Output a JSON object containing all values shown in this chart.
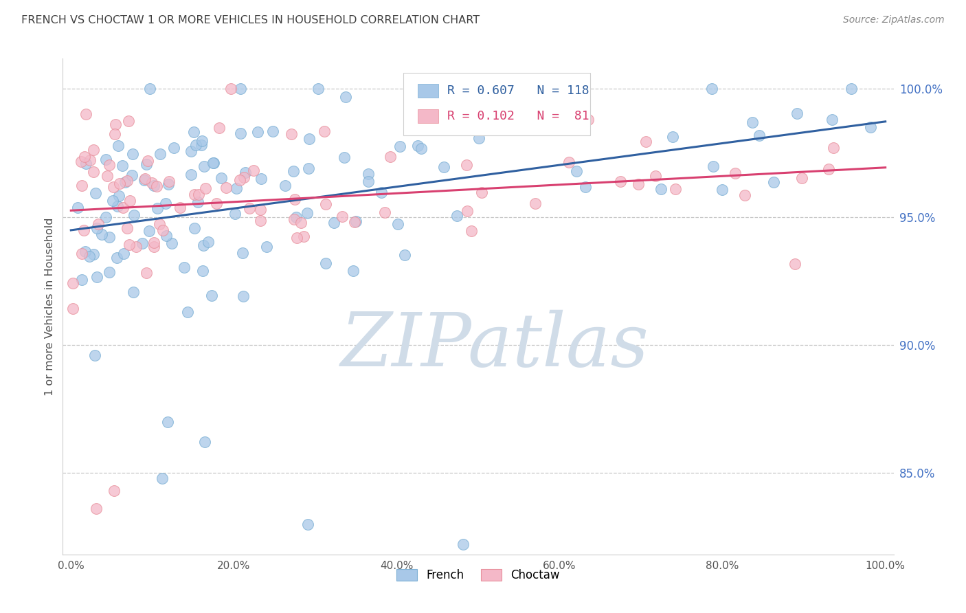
{
  "title": "FRENCH VS CHOCTAW 1 OR MORE VEHICLES IN HOUSEHOLD CORRELATION CHART",
  "source": "Source: ZipAtlas.com",
  "ylabel": "1 or more Vehicles in Household",
  "right_ytick_labels": [
    "85.0%",
    "90.0%",
    "95.0%",
    "100.0%"
  ],
  "right_ytick_values": [
    0.85,
    0.9,
    0.95,
    1.0
  ],
  "xlim": [
    -0.01,
    1.01
  ],
  "ylim": [
    0.818,
    1.012
  ],
  "xtick_labels": [
    "0.0%",
    "",
    "20.0%",
    "",
    "40.0%",
    "",
    "60.0%",
    "",
    "80.0%",
    "",
    "100.0%"
  ],
  "xtick_values": [
    0.0,
    0.1,
    0.2,
    0.3,
    0.4,
    0.5,
    0.6,
    0.7,
    0.8,
    0.9,
    1.0
  ],
  "french_R": 0.607,
  "french_N": 118,
  "choctaw_R": 0.102,
  "choctaw_N": 81,
  "french_color": "#a8c8e8",
  "french_edge_color": "#7bafd4",
  "choctaw_color": "#f4b8c8",
  "choctaw_edge_color": "#e8909c",
  "french_line_color": "#3060a0",
  "choctaw_line_color": "#d84070",
  "title_color": "#404040",
  "axis_label_color": "#505050",
  "tick_color_right": "#4472c4",
  "tick_color_bottom": "#555555",
  "legend_R_color": "#3060a0",
  "legend_R_color2": "#d84070",
  "legend_N_color": "#202020",
  "watermark_color": "#d0dce8",
  "watermark_text": "ZIPatlas",
  "background_color": "#ffffff",
  "grid_color": "#c8c8c8",
  "french_seed": 17,
  "choctaw_seed": 55,
  "french_line_start_y": 0.93,
  "french_line_end_y": 0.998,
  "choctaw_line_start_y": 0.9505,
  "choctaw_line_end_y": 0.966
}
